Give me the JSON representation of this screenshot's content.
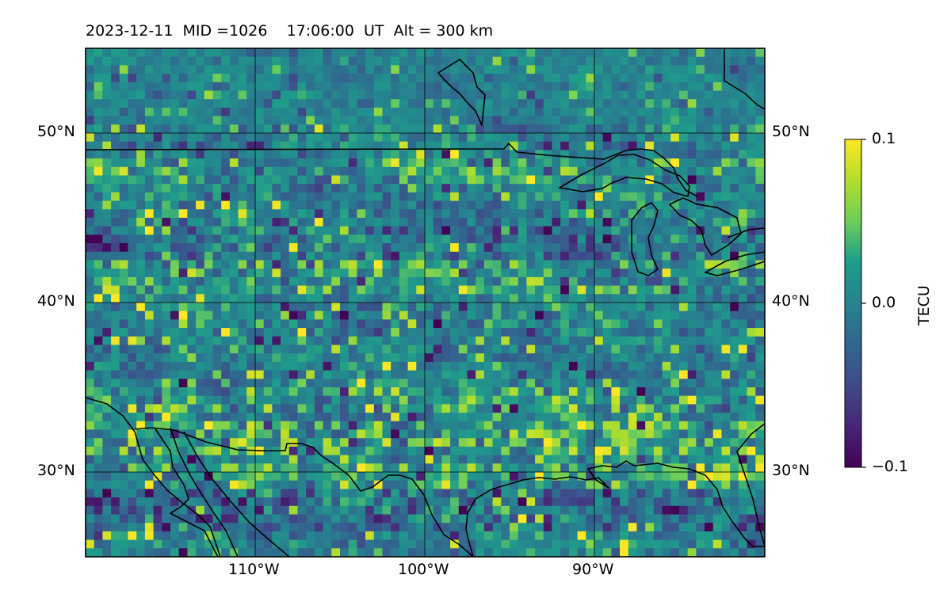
{
  "title": "2023-12-11  MID =1026    17:06:00  UT  Alt = 300 km",
  "map": {
    "lat_labels": [
      "50°N",
      "40°N",
      "30°N"
    ],
    "lon_labels": [
      "110°W",
      "100°W",
      "90°W"
    ],
    "lon_range": [
      -120,
      -80
    ],
    "lat_range": [
      25,
      55
    ],
    "grid_lines": true
  },
  "colorbar": {
    "label": "TECU",
    "ticks": [
      "0.1",
      "0.0",
      "−0.1"
    ],
    "range": [
      -0.1,
      0.1
    ],
    "colormap": "viridis"
  },
  "colors": {
    "low": "#440154",
    "mid": "#21918c",
    "high": "#fde725"
  }
}
